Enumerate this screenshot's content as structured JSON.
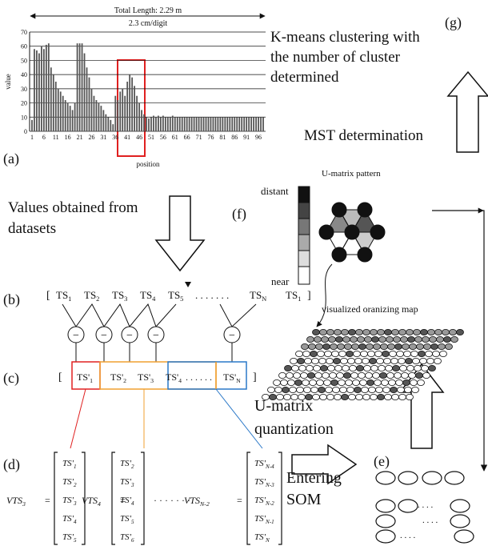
{
  "labels": {
    "a": "(a)",
    "b": "(b)",
    "c": "(c)",
    "d": "(d)",
    "e": "(e)",
    "f": "(f)",
    "g": "(g)"
  },
  "chart": {
    "type": "bar",
    "title_lines": [
      "Total Length: 2.29 m",
      "2.3 cm/digit"
    ],
    "ylabel": "value",
    "xlabel": "position",
    "x": [
      1,
      2,
      3,
      4,
      5,
      6,
      7,
      8,
      9,
      10,
      11,
      12,
      13,
      14,
      15,
      16,
      17,
      18,
      19,
      20,
      21,
      22,
      23,
      24,
      25,
      26,
      27,
      28,
      29,
      30,
      31,
      32,
      33,
      34,
      35,
      36,
      37,
      38,
      39,
      40,
      41,
      42,
      43,
      44,
      45,
      46,
      47,
      48,
      49,
      50,
      51,
      52,
      53,
      54,
      55,
      56,
      57,
      58,
      59,
      60,
      61,
      62,
      63,
      64,
      65,
      66,
      67,
      68,
      69,
      70,
      71,
      72,
      73,
      74,
      75,
      76,
      77,
      78,
      79,
      80,
      81,
      82,
      83,
      84,
      85,
      86,
      87,
      88,
      89,
      90,
      91,
      92,
      93,
      94,
      95,
      96,
      97,
      98
    ],
    "values": [
      8,
      58,
      57,
      55,
      60,
      58,
      61,
      62,
      45,
      40,
      35,
      30,
      28,
      25,
      22,
      20,
      18,
      15,
      20,
      62,
      62,
      62,
      55,
      45,
      38,
      30,
      25,
      22,
      20,
      18,
      15,
      12,
      10,
      8,
      5,
      25,
      22,
      28,
      30,
      25,
      35,
      40,
      38,
      32,
      25,
      20,
      15,
      12,
      10,
      9,
      10,
      11,
      10,
      11,
      10,
      11,
      10,
      10,
      10,
      11,
      10,
      10,
      10,
      10,
      10,
      10,
      10,
      10,
      10,
      10,
      10,
      10,
      10,
      10,
      10,
      10,
      10,
      10,
      10,
      10,
      10,
      10,
      10,
      10,
      10,
      10,
      10,
      10,
      10,
      10,
      10,
      10,
      10,
      10,
      10,
      10,
      10,
      10
    ],
    "color": "#555555",
    "xlim": [
      0,
      99
    ],
    "xticks": [
      1,
      6,
      11,
      16,
      21,
      26,
      31,
      36,
      41,
      46,
      51,
      56,
      61,
      66,
      71,
      76,
      81,
      86,
      91,
      96
    ],
    "ylim": [
      0,
      70
    ],
    "yticks": [
      0,
      10,
      20,
      30,
      40,
      50,
      60,
      70
    ],
    "grid": true
  },
  "kmeans": [
    "K-means clustering with",
    "the number of cluster",
    "determined"
  ],
  "mst": "MST determination",
  "values_text": [
    "Values obtained from",
    "datasets"
  ],
  "umatrix_pattern": "U-matrix pattern",
  "distant": "distant",
  "near": "near",
  "som_map": "visualized oranizing map",
  "quantization": [
    "U-matrix",
    "quantization"
  ],
  "entering": [
    "Entering",
    "SOM"
  ],
  "ts_row": {
    "open": "[",
    "items": [
      {
        "t": "TS",
        "s": "1"
      },
      {
        "t": "TS",
        "s": "2"
      },
      {
        "t": "TS",
        "s": "3"
      },
      {
        "t": "TS",
        "s": "4"
      },
      {
        "t": "TS",
        "s": "5"
      }
    ],
    "dots": ". . . . . . .",
    "items_end": [
      {
        "t": "TS",
        "s": "N"
      },
      {
        "t": "TS",
        "s": "1"
      }
    ],
    "close": "]"
  },
  "minus": "−",
  "tsp_row": {
    "open": "[",
    "items": [
      {
        "t": "TS'",
        "s": "1"
      },
      {
        "t": "TS'",
        "s": "2"
      },
      {
        "t": "TS'",
        "s": "3"
      },
      {
        "t": "TS'",
        "s": "4"
      }
    ],
    "dots": ". . . . . .",
    "last": {
      "t": "TS'",
      "s": "N"
    },
    "close": "]"
  },
  "matrices": [
    {
      "name": {
        "t": "VTS",
        "s": "3"
      },
      "eq": "=",
      "rows": [
        {
          "t": "TS'",
          "s": "1"
        },
        {
          "t": "TS'",
          "s": "2"
        },
        {
          "t": "TS'",
          "s": "3"
        },
        {
          "t": "TS'",
          "s": "4"
        },
        {
          "t": "TS'",
          "s": "5"
        }
      ]
    },
    {
      "name": {
        "t": "VTS",
        "s": "4"
      },
      "eq": "=",
      "rows": [
        {
          "t": "TS'",
          "s": "2"
        },
        {
          "t": "TS'",
          "s": "3"
        },
        {
          "t": "TS'",
          "s": "4"
        },
        {
          "t": "TS'",
          "s": "5"
        },
        {
          "t": "TS'",
          "s": "6"
        }
      ]
    },
    {
      "name": {
        "t": "VTS",
        "s": "N-2"
      },
      "eq": "=",
      "rows": [
        {
          "t": "TS'",
          "s": "N-4"
        },
        {
          "t": "TS'",
          "s": "N-3"
        },
        {
          "t": "TS'",
          "s": "N-2"
        },
        {
          "t": "TS'",
          "s": "N-1"
        },
        {
          "t": "TS'",
          "s": "N"
        }
      ]
    }
  ],
  "matrix_dots": "· · · · · · ·",
  "e_dots": ". . . ."
}
